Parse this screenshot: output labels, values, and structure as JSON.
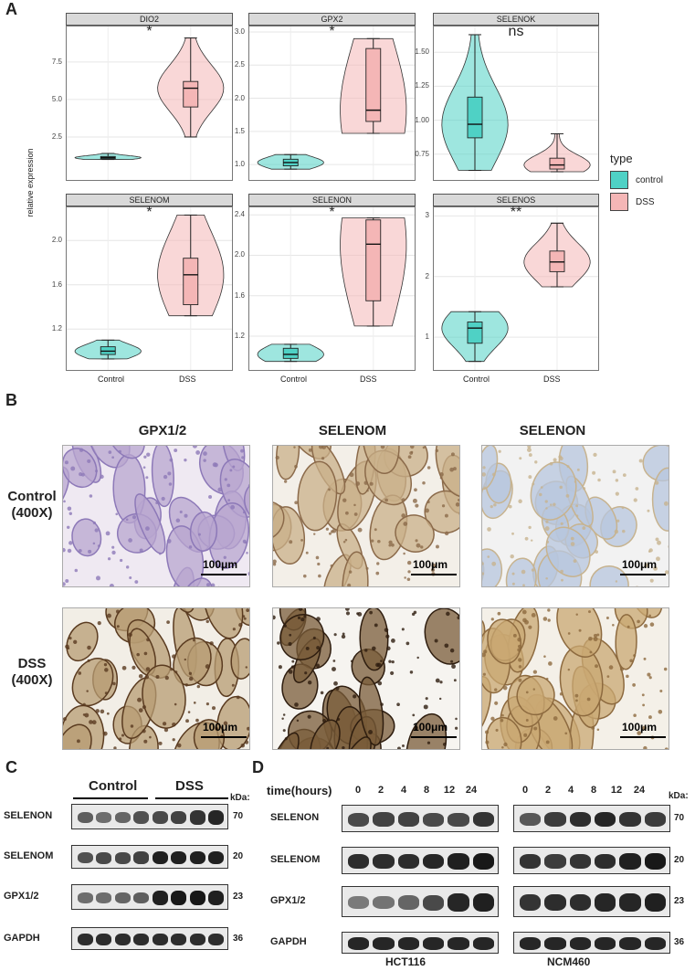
{
  "panels": {
    "a": "A",
    "b": "B",
    "c": "C",
    "d": "D"
  },
  "panel_a": {
    "ylabel": "relative expression",
    "x_categories": [
      "Control",
      "DSS"
    ],
    "legend": {
      "title": "type",
      "items": [
        {
          "label": "control",
          "color": "#4fd1c5"
        },
        {
          "label": "DSS",
          "color": "#f4b6b6"
        }
      ]
    },
    "facets": [
      {
        "title": "DIO2",
        "sig": "*",
        "yticks": [
          "2.5",
          "5.0",
          "7.5"
        ]
      },
      {
        "title": "GPX2",
        "sig": "*",
        "yticks": [
          "1.0",
          "1.5",
          "2.0",
          "2.5",
          "3.0"
        ]
      },
      {
        "title": "SELENOK",
        "sig": "ns",
        "yticks": [
          "0.75",
          "1.00",
          "1.25",
          "1.50"
        ]
      },
      {
        "title": "SELENOM",
        "sig": "*",
        "yticks": [
          "1.2",
          "1.6",
          "2.0"
        ]
      },
      {
        "title": "SELENON",
        "sig": "*",
        "yticks": [
          "1.2",
          "1.6",
          "2.0",
          "2.4"
        ]
      },
      {
        "title": "SELENOS",
        "sig": "**",
        "yticks": [
          "1",
          "2",
          "3"
        ]
      }
    ]
  },
  "chart_data": {
    "type": "violin",
    "ylabel": "relative expression",
    "categories": [
      "Control",
      "DSS"
    ],
    "facets": [
      {
        "name": "DIO2",
        "ylim": [
          0,
          9.5
        ],
        "significance": "*",
        "series": [
          {
            "name": "control",
            "min": 1.0,
            "q1": 1.05,
            "median": 1.12,
            "q3": 1.2,
            "max": 1.4
          },
          {
            "name": "DSS",
            "min": 2.5,
            "q1": 4.5,
            "median": 5.75,
            "q3": 6.2,
            "max": 9.1
          }
        ]
      },
      {
        "name": "GPX2",
        "ylim": [
          0.85,
          3.0
        ],
        "significance": "*",
        "series": [
          {
            "name": "control",
            "min": 0.93,
            "q1": 0.98,
            "median": 1.03,
            "q3": 1.08,
            "max": 1.15
          },
          {
            "name": "DSS",
            "min": 1.47,
            "q1": 1.65,
            "median": 1.82,
            "q3": 2.75,
            "max": 2.9
          }
        ]
      },
      {
        "name": "SELENOK",
        "ylim": [
          0.6,
          1.65
        ],
        "significance": "ns",
        "series": [
          {
            "name": "control",
            "min": 0.63,
            "q1": 0.87,
            "median": 0.97,
            "q3": 1.17,
            "max": 1.63
          },
          {
            "name": "DSS",
            "min": 0.62,
            "q1": 0.64,
            "median": 0.67,
            "q3": 0.72,
            "max": 0.9
          }
        ]
      },
      {
        "name": "SELENOM",
        "ylim": [
          0.88,
          2.25
        ],
        "significance": "*",
        "series": [
          {
            "name": "control",
            "min": 0.93,
            "q1": 0.97,
            "median": 1.0,
            "q3": 1.04,
            "max": 1.1
          },
          {
            "name": "DSS",
            "min": 1.32,
            "q1": 1.42,
            "median": 1.69,
            "q3": 1.84,
            "max": 2.23
          }
        ]
      },
      {
        "name": "SELENON",
        "ylim": [
          0.92,
          2.42
        ],
        "significance": "*",
        "series": [
          {
            "name": "control",
            "min": 0.95,
            "q1": 0.98,
            "median": 1.02,
            "q3": 1.08,
            "max": 1.12
          },
          {
            "name": "DSS",
            "min": 1.3,
            "q1": 1.55,
            "median": 2.11,
            "q3": 2.35,
            "max": 2.37
          }
        ]
      },
      {
        "name": "SELENOS",
        "ylim": [
          0.55,
          3.05
        ],
        "significance": "**",
        "series": [
          {
            "name": "control",
            "min": 0.6,
            "q1": 0.9,
            "median": 1.15,
            "q3": 1.25,
            "max": 1.42
          },
          {
            "name": "DSS",
            "min": 1.83,
            "q1": 2.08,
            "median": 2.24,
            "q3": 2.42,
            "max": 2.88
          }
        ]
      }
    ]
  },
  "panel_b": {
    "columns": [
      "GPX1/2",
      "SELENOM",
      "SELENON"
    ],
    "rows": [
      {
        "line1": "Control",
        "line2": "(400X)"
      },
      {
        "line1": "DSS",
        "line2": "(400X)"
      }
    ],
    "scale_label": "100μm"
  },
  "panel_c": {
    "groups": [
      "Control",
      "DSS"
    ],
    "kda_header": "kDa:",
    "proteins": [
      {
        "name": "SELENON",
        "kda": "70"
      },
      {
        "name": "SELENOM",
        "kda": "20"
      },
      {
        "name": "GPX1/2",
        "kda": "23"
      },
      {
        "name": "GAPDH",
        "kda": "36"
      }
    ]
  },
  "panel_d": {
    "time_label": "time(hours)",
    "times": [
      "0",
      "2",
      "4",
      "8",
      "12",
      "24"
    ],
    "kda_header": "kDa:",
    "cell_lines": [
      "HCT116",
      "NCM460"
    ],
    "proteins": [
      {
        "name": "SELENON",
        "kda": "70"
      },
      {
        "name": "SELENOM",
        "kda": "20"
      },
      {
        "name": "GPX1/2",
        "kda": "23"
      },
      {
        "name": "GAPDH",
        "kda": "36"
      }
    ]
  }
}
